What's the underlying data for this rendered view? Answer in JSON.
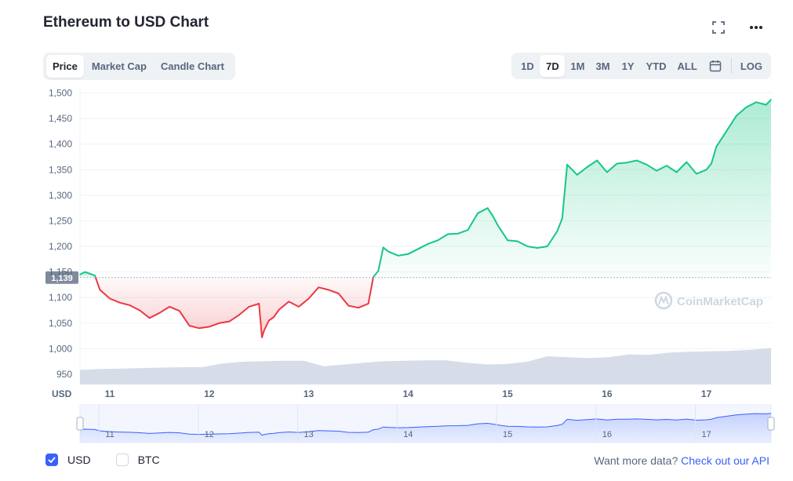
{
  "header": {
    "title": "Ethereum to USD Chart",
    "icons": [
      "fullscreen-icon",
      "more-icon"
    ]
  },
  "tabs": [
    {
      "label": "Price",
      "active": true
    },
    {
      "label": "Market Cap",
      "active": false
    },
    {
      "label": "Candle Chart",
      "active": false
    }
  ],
  "ranges": [
    {
      "label": "1D",
      "active": false
    },
    {
      "label": "7D",
      "active": true
    },
    {
      "label": "1M",
      "active": false
    },
    {
      "label": "3M",
      "active": false
    },
    {
      "label": "1Y",
      "active": false
    },
    {
      "label": "YTD",
      "active": false
    },
    {
      "label": "ALL",
      "active": false
    }
  ],
  "log_label": "LOG",
  "watermark": "CoinMarketCap",
  "colors": {
    "up": "#16c784",
    "down": "#ea3943",
    "volume": "#cfd6e4",
    "navigator": "#3861fb",
    "accent": "#3861fb"
  },
  "footer": {
    "currencies": [
      {
        "label": "USD",
        "checked": true
      },
      {
        "label": "BTC",
        "checked": false
      }
    ],
    "api_text": "Want more data?",
    "api_link": "Check out our API"
  },
  "chart_data": {
    "type": "line",
    "xlabel": "USD",
    "x_ticks": [
      "11",
      "12",
      "13",
      "14",
      "15",
      "16",
      "17"
    ],
    "y_ticks": [
      "1,500",
      "1,450",
      "1,400",
      "1,350",
      "1,300",
      "1,250",
      "1,200",
      "1,150",
      "1,100",
      "1,050",
      "1,000",
      "950"
    ],
    "ylim": [
      930,
      1510
    ],
    "xlim": [
      10.7,
      17.65
    ],
    "baseline": 1139,
    "baseline_label": "1,139",
    "grid": true,
    "series": [
      {
        "x": [
          10.7,
          10.75,
          10.85,
          10.9,
          11.0,
          11.1,
          11.2,
          11.3,
          11.4,
          11.5,
          11.6,
          11.7,
          11.8,
          11.9,
          12.0,
          12.1,
          12.2,
          12.3,
          12.4,
          12.5,
          12.53,
          12.55,
          12.6,
          12.65,
          12.7,
          12.8,
          12.9,
          13.0,
          13.1,
          13.2,
          13.3,
          13.4,
          13.5,
          13.6,
          13.65,
          13.7,
          13.75,
          13.8,
          13.9,
          14.0,
          14.1,
          14.2,
          14.3,
          14.4,
          14.5,
          14.6,
          14.7,
          14.8,
          14.85,
          14.9,
          15.0,
          15.1,
          15.2,
          15.3,
          15.4,
          15.5,
          15.55,
          15.6,
          15.65,
          15.7,
          15.8,
          15.9,
          16.0,
          16.1,
          16.2,
          16.3,
          16.4,
          16.5,
          16.6,
          16.7,
          16.8,
          16.9,
          17.0,
          17.05,
          17.1,
          17.2,
          17.3,
          17.4,
          17.5,
          17.6,
          17.65
        ],
        "y": [
          1145,
          1150,
          1143,
          1115,
          1098,
          1090,
          1085,
          1075,
          1060,
          1070,
          1082,
          1074,
          1045,
          1040,
          1043,
          1050,
          1053,
          1066,
          1082,
          1088,
          1022,
          1035,
          1055,
          1062,
          1076,
          1092,
          1082,
          1098,
          1120,
          1115,
          1108,
          1084,
          1080,
          1088,
          1140,
          1152,
          1198,
          1190,
          1182,
          1185,
          1195,
          1205,
          1212,
          1224,
          1225,
          1232,
          1265,
          1275,
          1260,
          1242,
          1212,
          1210,
          1200,
          1197,
          1200,
          1230,
          1255,
          1360,
          1350,
          1340,
          1355,
          1368,
          1345,
          1362,
          1364,
          1368,
          1360,
          1348,
          1358,
          1345,
          1365,
          1342,
          1350,
          1362,
          1395,
          1425,
          1455,
          1472,
          1482,
          1477,
          1487
        ]
      }
    ],
    "volume_relative": [
      0.32,
      0.34,
      0.35,
      0.36,
      0.37,
      0.38,
      0.38,
      0.46,
      0.5,
      0.51,
      0.52,
      0.52,
      0.4,
      0.44,
      0.48,
      0.51,
      0.52,
      0.53,
      0.53,
      0.48,
      0.44,
      0.45,
      0.5,
      0.62,
      0.6,
      0.58,
      0.6,
      0.66,
      0.65,
      0.7,
      0.72,
      0.73,
      0.74,
      0.76,
      0.8
    ]
  }
}
